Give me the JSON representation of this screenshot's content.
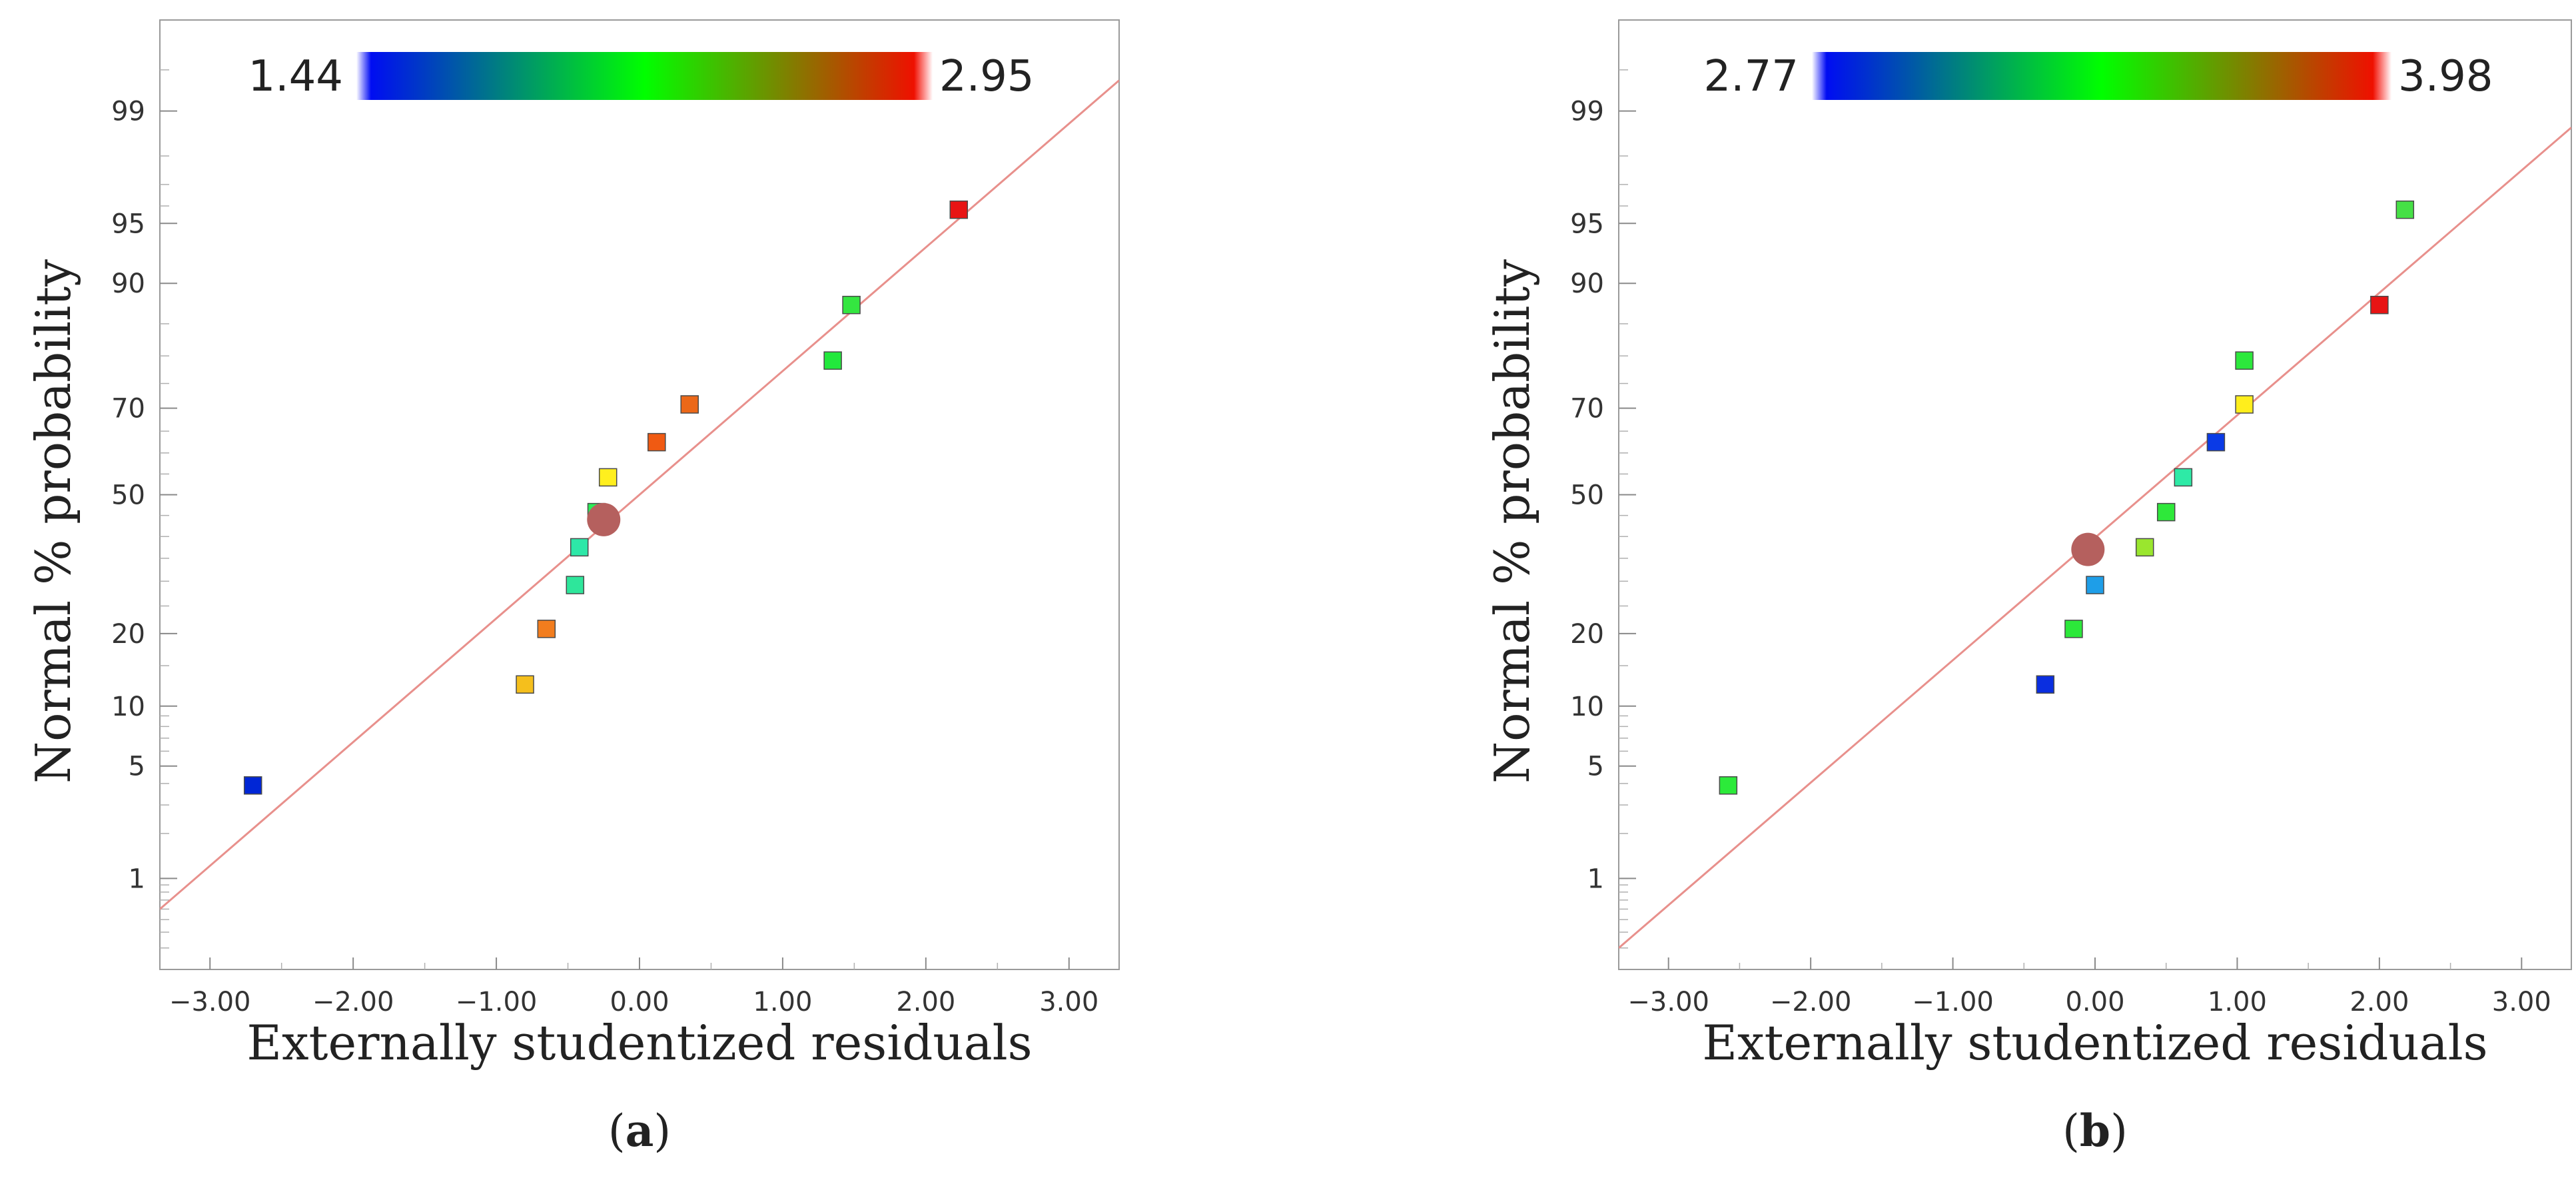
{
  "chart_data": [
    {
      "type": "scatter",
      "panel_label": "a",
      "xlabel": "Externally studentized residuals",
      "ylabel": "Normal % probability",
      "xlim": [
        -3.35,
        3.35
      ],
      "x_ticks": [
        -3,
        -2,
        -1,
        0,
        1,
        2,
        3
      ],
      "x_tick_labels": [
        "−3.00",
        "−2.00",
        "−1.00",
        "0.00",
        "1.00",
        "2.00",
        "3.00"
      ],
      "y_scale": "normal-probability",
      "ylim": [
        0.2,
        99.8
      ],
      "y_ticks": [
        1,
        5,
        10,
        20,
        50,
        70,
        90,
        95,
        99
      ],
      "y_tick_labels": [
        "1",
        "5",
        "10",
        "20",
        "50",
        "70",
        "90",
        "95",
        "99"
      ],
      "colorbar": {
        "min": 1.44,
        "max": 2.95,
        "min_label": "1.44",
        "max_label": "2.95",
        "colors": [
          "#0000ff",
          "#00ff00",
          "#ff0000"
        ]
      },
      "fit_line": {
        "x": [
          -3.35,
          3.35
        ],
        "p": [
          0.6,
          99.4
        ],
        "color": "#e8908c"
      },
      "marker": {
        "x": -0.25,
        "p": 44,
        "color": "#b5605e"
      },
      "points": [
        {
          "x": -2.7,
          "p": 3.9,
          "color": "#0026d6"
        },
        {
          "x": -0.8,
          "p": 12.5,
          "color": "#f5bf1c"
        },
        {
          "x": -0.65,
          "p": 20.8,
          "color": "#f27d1e"
        },
        {
          "x": -0.45,
          "p": 29.2,
          "color": "#2ee69b"
        },
        {
          "x": -0.42,
          "p": 37.5,
          "color": "#2de8a8"
        },
        {
          "x": -0.3,
          "p": 45.8,
          "color": "#2cec58"
        },
        {
          "x": -0.22,
          "p": 54.2,
          "color": "#ffef1e"
        },
        {
          "x": 0.12,
          "p": 62.5,
          "color": "#f05a12"
        },
        {
          "x": 0.35,
          "p": 70.8,
          "color": "#ec6818"
        },
        {
          "x": 1.35,
          "p": 79.2,
          "color": "#22e83c"
        },
        {
          "x": 1.48,
          "p": 87.5,
          "color": "#34e640"
        },
        {
          "x": 2.23,
          "p": 95.8,
          "color": "#e81414"
        }
      ]
    },
    {
      "type": "scatter",
      "panel_label": "b",
      "xlabel": "Externally studentized residuals",
      "ylabel": "Normal % probability",
      "xlim": [
        -3.35,
        3.35
      ],
      "x_ticks": [
        -3,
        -2,
        -1,
        0,
        1,
        2,
        3
      ],
      "x_tick_labels": [
        "−3.00",
        "−2.00",
        "−1.00",
        "0.00",
        "1.00",
        "2.00",
        "3.00"
      ],
      "y_scale": "normal-probability",
      "ylim": [
        0.2,
        99.8
      ],
      "y_ticks": [
        1,
        5,
        10,
        20,
        50,
        70,
        90,
        95,
        99
      ],
      "y_tick_labels": [
        "1",
        "5",
        "10",
        "20",
        "50",
        "70",
        "90",
        "95",
        "99"
      ],
      "colorbar": {
        "min": 2.77,
        "max": 3.98,
        "min_label": "2.77",
        "max_label": "3.98",
        "colors": [
          "#0000ff",
          "#00ff00",
          "#ff0000"
        ]
      },
      "fit_line": {
        "x": [
          -3.35,
          3.35
        ],
        "p": [
          0.3,
          98.7
        ],
        "color": "#e8908c"
      },
      "marker": {
        "x": -0.05,
        "p": 37,
        "color": "#b5605e"
      },
      "points": [
        {
          "x": -2.58,
          "p": 3.9,
          "color": "#2cea3a"
        },
        {
          "x": -0.35,
          "p": 12.5,
          "color": "#0a2ee0"
        },
        {
          "x": -0.15,
          "p": 20.8,
          "color": "#2ce83a"
        },
        {
          "x": 0.0,
          "p": 29.2,
          "color": "#1e9ee8"
        },
        {
          "x": 0.35,
          "p": 37.5,
          "color": "#9ae62e"
        },
        {
          "x": 0.5,
          "p": 45.8,
          "color": "#2ee83a"
        },
        {
          "x": 0.62,
          "p": 54.2,
          "color": "#2eeaa6"
        },
        {
          "x": 0.85,
          "p": 62.5,
          "color": "#0a3ae6"
        },
        {
          "x": 1.05,
          "p": 70.8,
          "color": "#ffee1c"
        },
        {
          "x": 1.05,
          "p": 79.2,
          "color": "#2ce83c"
        },
        {
          "x": 2.0,
          "p": 87.5,
          "color": "#e81414"
        },
        {
          "x": 2.18,
          "p": 95.8,
          "color": "#46e046"
        }
      ]
    }
  ]
}
